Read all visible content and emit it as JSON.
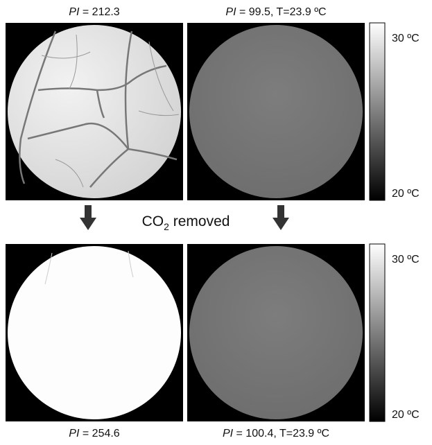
{
  "panels": [
    {
      "symbol": "PI",
      "rest": "= 212.3"
    },
    {
      "symbol": "PI",
      "rest": "= 99.5, T=23.9 ºC"
    },
    {
      "symbol": "PI",
      "rest": "= 254.6"
    },
    {
      "symbol": "PI",
      "rest": "= 100.4, T=23.9 ºC"
    }
  ],
  "colorbars": [
    {
      "top_label": "30 ºC",
      "bottom_label": "20 ºC"
    },
    {
      "top_label": "30 ºC",
      "bottom_label": "20 ºC"
    }
  ],
  "middle": {
    "text": "CO",
    "subscript": "2",
    "text_after": "removed"
  }
}
